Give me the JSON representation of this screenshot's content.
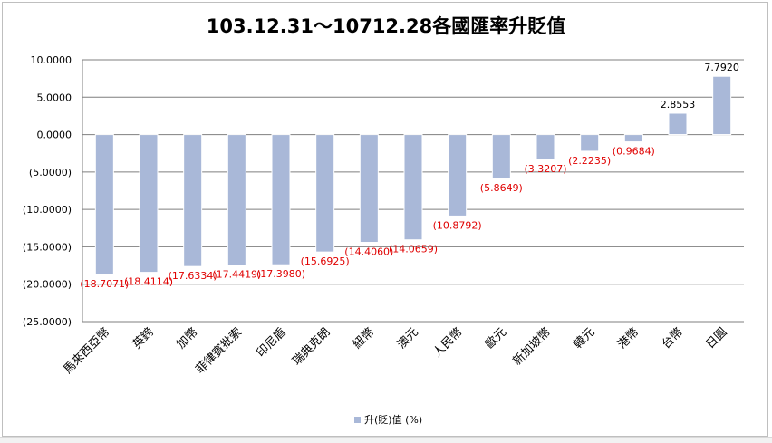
{
  "chart_data": {
    "type": "bar",
    "title": "103.12.31～10712.28各國匯率升貶值",
    "categories": [
      "馬來西亞幣",
      "英鎊",
      "加幣",
      "菲律賓批索",
      "印尼盾",
      "瑞典克朗",
      "紐幣",
      "澳元",
      "人民幣",
      "歐元",
      "新加坡幣",
      "韓元",
      "港幣",
      "台幣",
      "日圓"
    ],
    "series": [
      {
        "name": "升(貶)值 (%)",
        "values": [
          -18.7071,
          -18.4114,
          -17.6334,
          -17.4419,
          -17.398,
          -15.6925,
          -14.406,
          -14.0659,
          -10.8792,
          -5.8649,
          -3.3207,
          -2.2235,
          -0.9684,
          2.8553,
          7.792
        ],
        "data_labels": [
          "(18.7071)",
          "(18.4114)",
          "(17.6334)",
          "(17.4419)",
          "(17.3980)",
          "(15.6925)",
          "(14.4060)",
          "(14.0659)",
          "(10.8792)",
          "(5.8649)",
          "(3.3207)",
          "(2.2235)",
          "(0.9684)",
          "2.8553",
          "7.7920"
        ]
      }
    ],
    "ylim": [
      -25,
      10
    ],
    "yticks": [
      10,
      5,
      0,
      -5,
      -10,
      -15,
      -20,
      -25
    ],
    "ytick_labels": [
      "10.0000",
      "5.0000",
      "0.0000",
      "(5.0000)",
      "(10.0000)",
      "(15.0000)",
      "(20.0000)",
      "(25.0000)"
    ],
    "grid": true,
    "legend_position": "bottom",
    "colors": {
      "bar": "#a9b8d8",
      "bar_edge": "#8497c1",
      "negative_label": "#e00000",
      "positive_label": "#000000",
      "grid": "#7f7f7f"
    }
  }
}
